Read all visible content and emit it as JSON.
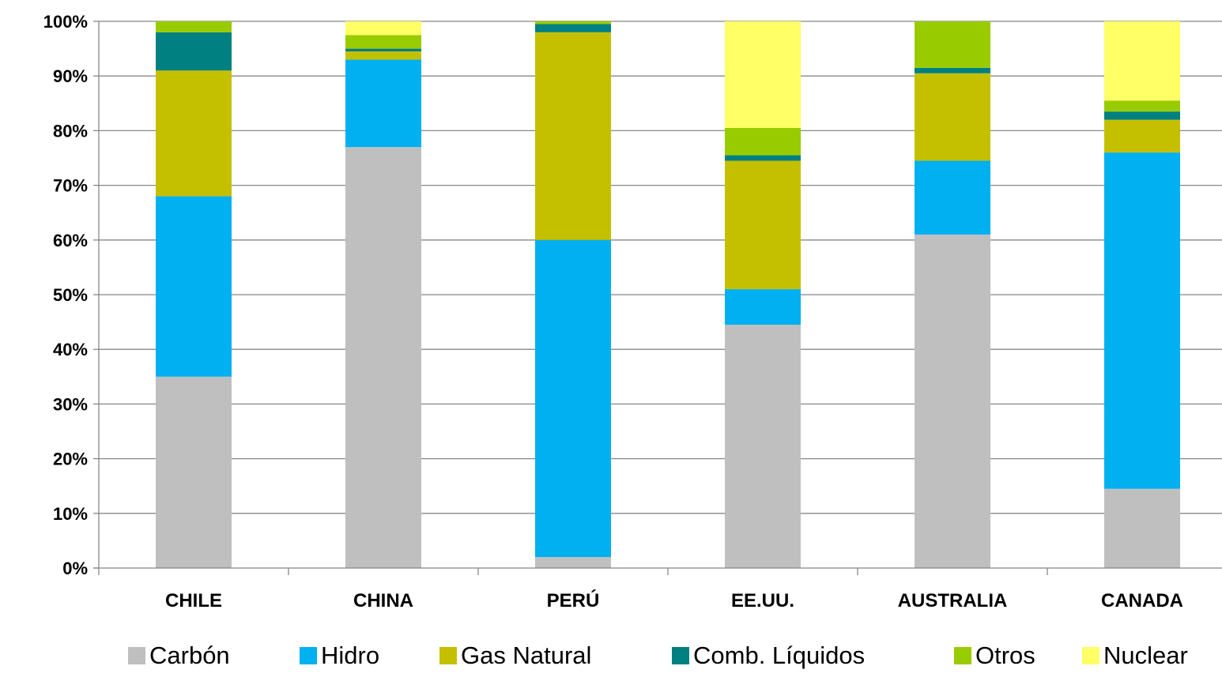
{
  "chart_data": {
    "type": "bar",
    "stacked": true,
    "categories": [
      "CHILE",
      "CHINA",
      "PERÚ",
      "EE.UU.",
      "AUSTRALIA",
      "CANADA"
    ],
    "series": [
      {
        "name": "Carbón",
        "color": "#BFBFBF",
        "values": [
          35,
          77,
          2,
          44.5,
          61,
          14.5
        ]
      },
      {
        "name": "Hidro",
        "color": "#00B0F0",
        "values": [
          33,
          16,
          58,
          6.5,
          13.5,
          61.5
        ]
      },
      {
        "name": "Gas Natural",
        "color": "#C4C000",
        "values": [
          23,
          1.5,
          38,
          23.5,
          16,
          6
        ]
      },
      {
        "name": "Comb. Líquidos",
        "color": "#008080",
        "values": [
          7,
          0.5,
          1.5,
          1,
          1,
          1.5
        ]
      },
      {
        "name": "Otros",
        "color": "#99CC00",
        "values": [
          2,
          2.5,
          0.5,
          5,
          8.5,
          2
        ]
      },
      {
        "name": "Nuclear",
        "color": "#FFFF66",
        "values": [
          0,
          2.5,
          0,
          19.5,
          0,
          14.5
        ]
      }
    ],
    "yticks": [
      "0%",
      "10%",
      "20%",
      "30%",
      "40%",
      "50%",
      "60%",
      "70%",
      "80%",
      "90%",
      "100%"
    ],
    "ylim": [
      0,
      100
    ],
    "grid": true,
    "legend_position": "bottom"
  }
}
